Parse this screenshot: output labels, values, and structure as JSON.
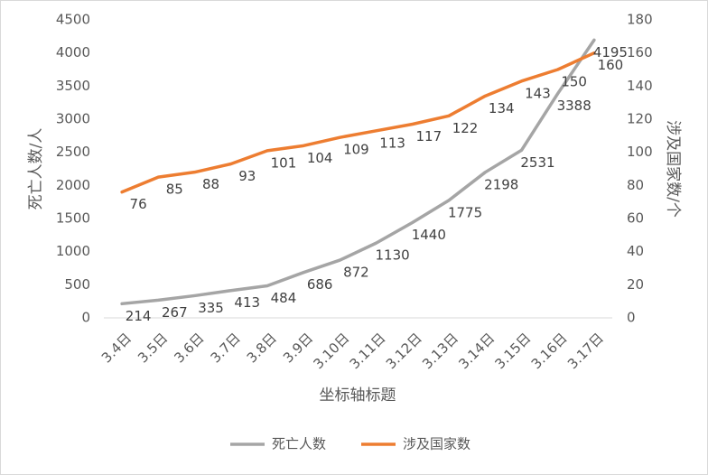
{
  "chart_data": {
    "type": "line",
    "categories": [
      "3.4日",
      "3.5日",
      "3.6日",
      "3.7日",
      "3.8日",
      "3.9日",
      "3.10日",
      "3.11日",
      "3.12日",
      "3.13日",
      "3.14日",
      "3.15日",
      "3.16日",
      "3.17日"
    ],
    "series": [
      {
        "name": "死亡人数",
        "color": "#a5a5a5",
        "values": [
          214,
          267,
          335,
          413,
          484,
          686,
          872,
          1130,
          1440,
          1775,
          2198,
          2531,
          3388,
          4195
        ]
      },
      {
        "name": "涉及国家数",
        "color": "#ed7d31",
        "axis": "y2",
        "values": [
          76,
          85,
          88,
          93,
          101,
          104,
          109,
          113,
          117,
          122,
          134,
          143,
          150,
          160
        ]
      }
    ],
    "ylim": [
      0,
      4500
    ],
    "yticks": [
      0,
      500,
      1000,
      1500,
      2000,
      2500,
      3000,
      3500,
      4000,
      4500
    ],
    "y2lim": [
      0,
      180
    ],
    "y2ticks": [
      0,
      20,
      40,
      60,
      80,
      100,
      120,
      140,
      160,
      180
    ],
    "y_label": "死亡人数/人",
    "y2_label": "涉及国家数/个",
    "x_label": "坐标轴标题",
    "grid": false,
    "legend": "bottom"
  }
}
